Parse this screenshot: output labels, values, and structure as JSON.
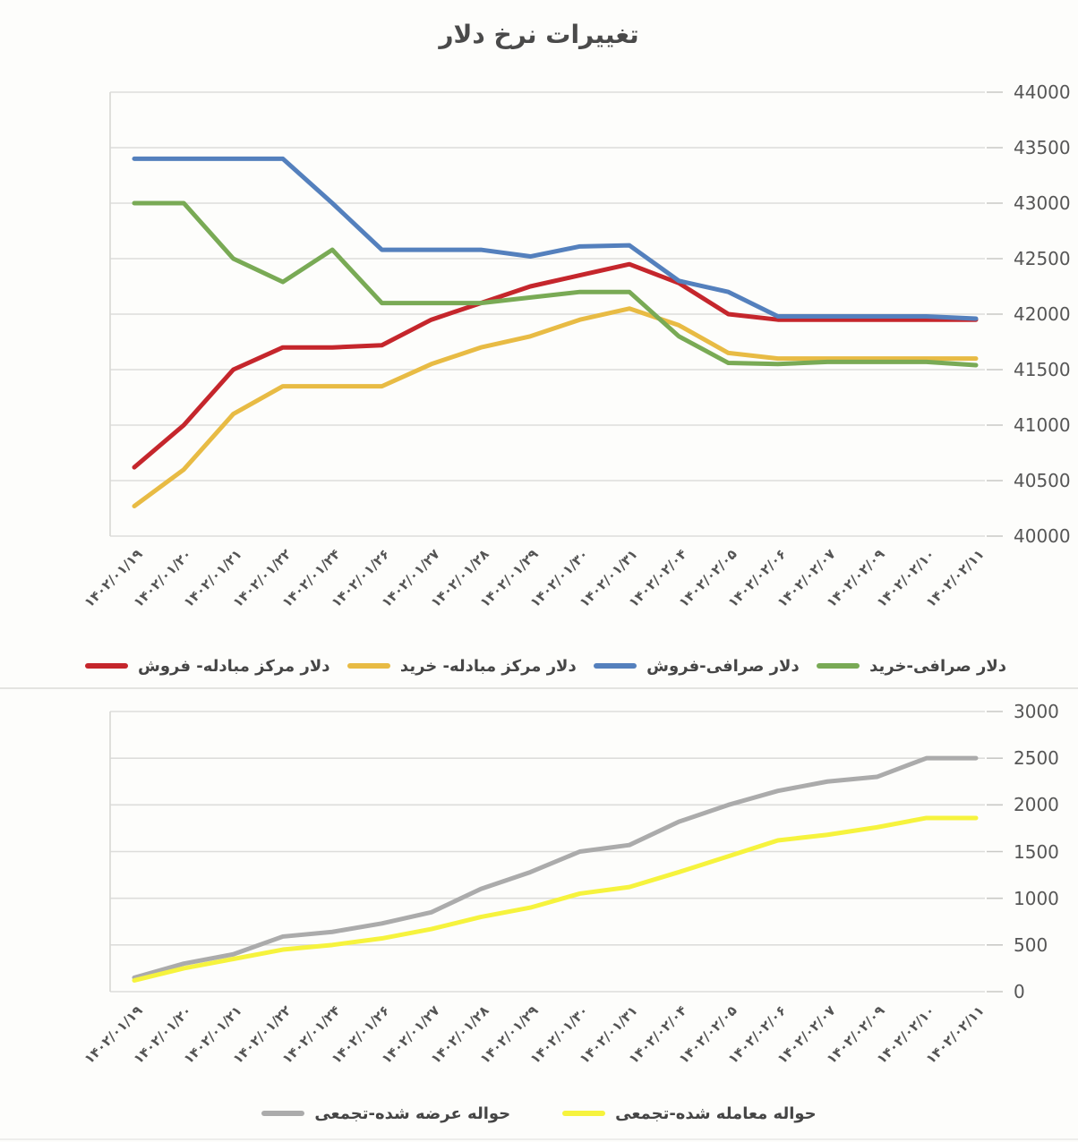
{
  "chart_data": [
    {
      "type": "line",
      "title": "تغییرات نرخ دلار",
      "categories": [
        "۱۴۰۲/۰۱/۱۹",
        "۱۴۰۲/۰۱/۲۰",
        "۱۴۰۲/۰۱/۲۱",
        "۱۴۰۲/۰۱/۲۲",
        "۱۴۰۲/۰۱/۲۴",
        "۱۴۰۲/۰۱/۲۶",
        "۱۴۰۲/۰۱/۲۷",
        "۱۴۰۲/۰۱/۲۸",
        "۱۴۰۲/۰۱/۲۹",
        "۱۴۰۲/۰۱/۳۰",
        "۱۴۰۲/۰۱/۳۱",
        "۱۴۰۲/۰۲/۰۴",
        "۱۴۰۲/۰۲/۰۵",
        "۱۴۰۲/۰۲/۰۶",
        "۱۴۰۲/۰۲/۰۷",
        "۱۴۰۲/۰۲/۰۹",
        "۱۴۰۲/۰۲/۱۰",
        "۱۴۰۲/۰۲/۱۱"
      ],
      "series": [
        {
          "name": "دلار مرکز مبادله- فروش",
          "color": "#c5262c",
          "values": [
            40620,
            41000,
            41500,
            41700,
            41700,
            41720,
            41950,
            42100,
            42250,
            42350,
            42450,
            42280,
            42000,
            41950,
            41950,
            41950,
            41950,
            41950
          ]
        },
        {
          "name": "دلار مرکز مبادله- خرید",
          "color": "#e8bb44",
          "values": [
            40270,
            40600,
            41100,
            41350,
            41350,
            41350,
            41550,
            41700,
            41800,
            41950,
            42050,
            41900,
            41650,
            41600,
            41600,
            41600,
            41600,
            41600
          ]
        },
        {
          "name": "دلار صرافی-فروش",
          "color": "#5480bd",
          "values": [
            43400,
            43400,
            43400,
            43400,
            43000,
            42580,
            42580,
            42580,
            42520,
            42610,
            42620,
            42300,
            42200,
            41980,
            41980,
            41980,
            41980,
            41960
          ]
        },
        {
          "name": "دلار صرافی-خرید",
          "color": "#79aa55",
          "values": [
            43000,
            43000,
            42500,
            42290,
            42580,
            42100,
            42100,
            42100,
            42150,
            42200,
            42200,
            41800,
            41560,
            41550,
            41570,
            41570,
            41570,
            41540
          ]
        }
      ],
      "ylim": [
        40000,
        44000
      ],
      "ytick_step": 500,
      "yticks": [
        "44000",
        "43500",
        "43000",
        "42500",
        "42000",
        "41500",
        "41000",
        "40500",
        "40000"
      ],
      "xlabel": "",
      "ylabel": "",
      "grid": true,
      "legend_position": "bottom",
      "y_axis_side": "right"
    },
    {
      "type": "line",
      "title": "",
      "categories": [
        "۱۴۰۲/۰۱/۱۹",
        "۱۴۰۲/۰۱/۲۰",
        "۱۴۰۲/۰۱/۲۱",
        "۱۴۰۲/۰۱/۲۲",
        "۱۴۰۲/۰۱/۲۴",
        "۱۴۰۲/۰۱/۲۶",
        "۱۴۰۲/۰۱/۲۷",
        "۱۴۰۲/۰۱/۲۸",
        "۱۴۰۲/۰۱/۲۹",
        "۱۴۰۲/۰۱/۳۰",
        "۱۴۰۲/۰۱/۳۱",
        "۱۴۰۲/۰۲/۰۴",
        "۱۴۰۲/۰۲/۰۵",
        "۱۴۰۲/۰۲/۰۶",
        "۱۴۰۲/۰۲/۰۷",
        "۱۴۰۲/۰۲/۰۹",
        "۱۴۰۲/۰۲/۱۰",
        "۱۴۰۲/۰۲/۱۱"
      ],
      "series": [
        {
          "name": "حواله عرضه شده-تجمعی",
          "color": "#ababab",
          "values": [
            150,
            300,
            400,
            590,
            640,
            730,
            850,
            1100,
            1280,
            1500,
            1570,
            1820,
            2000,
            2150,
            2250,
            2300,
            2500,
            2500
          ]
        },
        {
          "name": "حواله معامله شده-تجمعی",
          "color": "#f6f33d",
          "values": [
            120,
            250,
            350,
            450,
            500,
            570,
            670,
            800,
            900,
            1050,
            1120,
            1280,
            1450,
            1620,
            1680,
            1760,
            1860,
            1860
          ]
        }
      ],
      "ylim": [
        0,
        3000
      ],
      "ytick_step": 500,
      "yticks": [
        "3000",
        "2500",
        "2000",
        "1500",
        "1000",
        "500",
        "0"
      ],
      "xlabel": "",
      "ylabel": "",
      "grid": true,
      "legend_position": "bottom",
      "y_axis_side": "right"
    }
  ]
}
